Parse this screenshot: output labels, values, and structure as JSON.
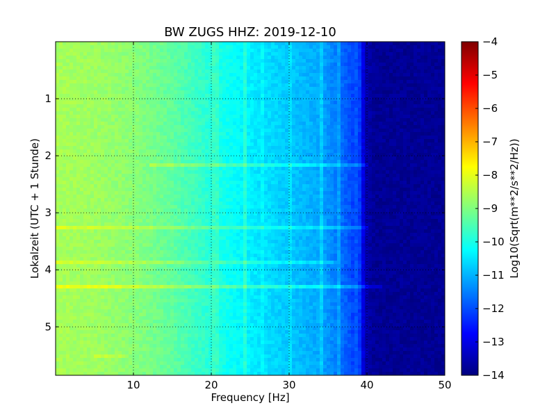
{
  "chart_data": {
    "type": "heatmap",
    "title": "BW ZUGS HHZ: 2019-12-10",
    "xlabel": "Frequency [Hz]",
    "ylabel": "Lokalzeit (UTC + 1 Stunde)",
    "colorbar_label": "Log10(Sqrt(m**2/s**2/Hz))",
    "xlim": [
      0,
      50
    ],
    "ylim": [
      5.85,
      0
    ],
    "x_ticks": [
      10,
      20,
      30,
      40,
      50
    ],
    "y_ticks": [
      1,
      2,
      3,
      4,
      5
    ],
    "colorbar_range": [
      -14,
      -4
    ],
    "colorbar_ticks": [
      -14,
      -13,
      -12,
      -11,
      -10,
      -9,
      -8,
      -7,
      -6,
      -5,
      -4
    ],
    "colormap": "jet",
    "grid": true,
    "profile": {
      "frequency_hz": [
        0,
        5,
        10,
        15,
        20,
        25,
        30,
        34,
        36,
        38,
        39,
        40,
        41,
        50
      ],
      "log10_amplitude": [
        -8.6,
        -8.7,
        -8.9,
        -9.3,
        -9.9,
        -10.4,
        -10.8,
        -11.1,
        -11.5,
        -12.0,
        -12.5,
        -13.6,
        -13.8,
        -13.8
      ]
    },
    "horizontal_streaks": [
      {
        "time_h": 2.15,
        "f_min": 12,
        "f_max": 40,
        "delta": 0.6
      },
      {
        "time_h": 3.28,
        "f_min": 0,
        "f_max": 40,
        "delta": 0.5
      },
      {
        "time_h": 3.88,
        "f_min": 0,
        "f_max": 36,
        "delta": 0.45
      },
      {
        "time_h": 4.28,
        "f_min": 0,
        "f_max": 42,
        "delta": 0.7
      },
      {
        "time_h": 5.52,
        "f_min": 5,
        "f_max": 9,
        "delta": 0.4
      }
    ],
    "vertical_lines": [
      {
        "freq_hz": 20.5,
        "delta": 0.25
      },
      {
        "freq_hz": 24.5,
        "delta": 0.45
      },
      {
        "freq_hz": 26.5,
        "delta": 0.2
      },
      {
        "freq_hz": 30.0,
        "delta": 0.25
      },
      {
        "freq_hz": 34.2,
        "delta": 0.4
      },
      {
        "freq_hz": 36.4,
        "delta": 0.4
      },
      {
        "freq_hz": 38.8,
        "delta": 0.35
      }
    ]
  }
}
